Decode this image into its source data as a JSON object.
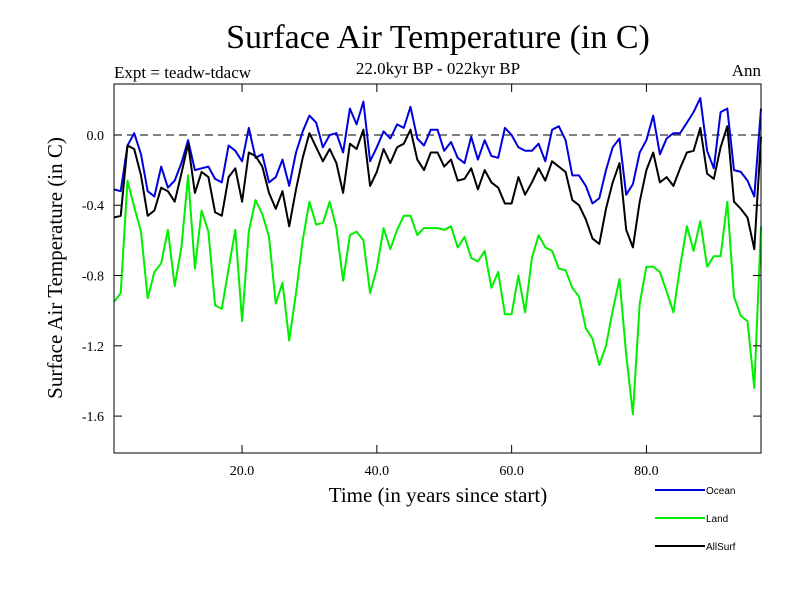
{
  "chart_data": {
    "type": "line",
    "title": "Surface Air Temperature (in C)",
    "subtitle": "22.0kyr BP - 022kyr BP",
    "experiment_label": "Expt = teadw-tdacw",
    "period_label": "Ann",
    "xlabel": "Time (in years since start)",
    "ylabel": "Surface Air Temperature (in C)",
    "xlim": [
      1,
      97
    ],
    "ylim": [
      -1.81,
      0.29
    ],
    "xticks": [
      20,
      40,
      60,
      80
    ],
    "xtick_labels": [
      "20.0",
      "40.0",
      "60.0",
      "80.0"
    ],
    "yticks": [
      0.0,
      -0.4,
      -0.8,
      -1.2,
      -1.6
    ],
    "ytick_labels": [
      "0.0",
      "-0.4",
      "-0.8",
      "-1.2",
      "-1.6"
    ],
    "reference_line": {
      "y": 0.0,
      "style": "dashed"
    },
    "legend_position": "bottom-right",
    "series": [
      {
        "name": "Ocean",
        "color": "#0000dd",
        "x": [
          1,
          2,
          3,
          4,
          5,
          6,
          7,
          8,
          9,
          10,
          11,
          12,
          13,
          14,
          15,
          16,
          17,
          18,
          19,
          20,
          21,
          22,
          23,
          24,
          25,
          26,
          27,
          28,
          29,
          30,
          31,
          32,
          33,
          34,
          35,
          36,
          37,
          38,
          39,
          40,
          41,
          42,
          43,
          44,
          45,
          46,
          47,
          48,
          49,
          50,
          51,
          52,
          53,
          54,
          55,
          56,
          57,
          58,
          59,
          60,
          61,
          62,
          63,
          64,
          65,
          66,
          67,
          68,
          69,
          70,
          71,
          72,
          73,
          74,
          75,
          76,
          77,
          78,
          79,
          80,
          81,
          82,
          83,
          84,
          85,
          86,
          87,
          88,
          89,
          90,
          91,
          92,
          93,
          94,
          95,
          96,
          97
        ],
        "values": [
          -0.31,
          -0.32,
          -0.06,
          0.01,
          -0.11,
          -0.32,
          -0.35,
          -0.18,
          -0.3,
          -0.26,
          -0.16,
          -0.03,
          -0.2,
          -0.19,
          -0.18,
          -0.25,
          -0.27,
          -0.06,
          -0.09,
          -0.15,
          0.04,
          -0.13,
          -0.11,
          -0.27,
          -0.24,
          -0.14,
          -0.29,
          -0.1,
          0.02,
          0.11,
          0.07,
          -0.07,
          0.0,
          0.01,
          -0.1,
          0.15,
          0.06,
          0.19,
          -0.15,
          -0.07,
          0.02,
          -0.02,
          0.06,
          0.04,
          0.16,
          -0.02,
          -0.06,
          0.03,
          0.03,
          -0.09,
          -0.04,
          -0.13,
          -0.16,
          -0.01,
          -0.14,
          -0.03,
          -0.12,
          -0.13,
          0.04,
          0.0,
          -0.07,
          -0.09,
          -0.09,
          -0.05,
          -0.15,
          0.03,
          0.05,
          -0.03,
          -0.23,
          -0.23,
          -0.29,
          -0.39,
          -0.36,
          -0.2,
          -0.07,
          -0.02,
          -0.34,
          -0.28,
          -0.1,
          -0.03,
          0.11,
          -0.11,
          -0.02,
          0.01,
          0.01,
          0.07,
          0.13,
          0.21,
          -0.09,
          -0.19,
          0.13,
          0.15,
          -0.2,
          -0.21,
          -0.26,
          -0.35,
          0.15
        ]
      },
      {
        "name": "Land",
        "color": "#00ee00",
        "x": [
          1,
          2,
          3,
          4,
          5,
          6,
          7,
          8,
          9,
          10,
          11,
          12,
          13,
          14,
          15,
          16,
          17,
          18,
          19,
          20,
          21,
          22,
          23,
          24,
          25,
          26,
          27,
          28,
          29,
          30,
          31,
          32,
          33,
          34,
          35,
          36,
          37,
          38,
          39,
          40,
          41,
          42,
          43,
          44,
          45,
          46,
          47,
          48,
          49,
          50,
          51,
          52,
          53,
          54,
          55,
          56,
          57,
          58,
          59,
          60,
          61,
          62,
          63,
          64,
          65,
          66,
          67,
          68,
          69,
          70,
          71,
          72,
          73,
          74,
          75,
          76,
          77,
          78,
          79,
          80,
          81,
          82,
          83,
          84,
          85,
          86,
          87,
          88,
          89,
          90,
          91,
          92,
          93,
          94,
          95,
          96,
          97
        ],
        "values": [
          -0.95,
          -0.9,
          -0.26,
          -0.41,
          -0.55,
          -0.93,
          -0.78,
          -0.73,
          -0.54,
          -0.86,
          -0.64,
          -0.23,
          -0.76,
          -0.43,
          -0.55,
          -0.97,
          -0.99,
          -0.76,
          -0.54,
          -1.06,
          -0.55,
          -0.37,
          -0.45,
          -0.58,
          -0.96,
          -0.84,
          -1.17,
          -0.9,
          -0.6,
          -0.38,
          -0.51,
          -0.5,
          -0.38,
          -0.53,
          -0.83,
          -0.57,
          -0.55,
          -0.6,
          -0.9,
          -0.76,
          -0.53,
          -0.65,
          -0.54,
          -0.46,
          -0.46,
          -0.57,
          -0.53,
          -0.53,
          -0.53,
          -0.54,
          -0.52,
          -0.64,
          -0.58,
          -0.7,
          -0.72,
          -0.66,
          -0.87,
          -0.78,
          -1.02,
          -1.02,
          -0.8,
          -1.01,
          -0.7,
          -0.57,
          -0.64,
          -0.66,
          -0.76,
          -0.77,
          -0.87,
          -0.92,
          -1.1,
          -1.16,
          -1.31,
          -1.2,
          -1.0,
          -0.82,
          -1.25,
          -1.59,
          -0.96,
          -0.75,
          -0.75,
          -0.78,
          -0.89,
          -1.01,
          -0.75,
          -0.52,
          -0.66,
          -0.49,
          -0.75,
          -0.69,
          -0.69,
          -0.38,
          -0.92,
          -1.03,
          -1.06,
          -1.44,
          -0.52
        ]
      },
      {
        "name": "AllSurf",
        "color": "#000000",
        "x": [
          1,
          2,
          3,
          4,
          5,
          6,
          7,
          8,
          9,
          10,
          11,
          12,
          13,
          14,
          15,
          16,
          17,
          18,
          19,
          20,
          21,
          22,
          23,
          24,
          25,
          26,
          27,
          28,
          29,
          30,
          31,
          32,
          33,
          34,
          35,
          36,
          37,
          38,
          39,
          40,
          41,
          42,
          43,
          44,
          45,
          46,
          47,
          48,
          49,
          50,
          51,
          52,
          53,
          54,
          55,
          56,
          57,
          58,
          59,
          60,
          61,
          62,
          63,
          64,
          65,
          66,
          67,
          68,
          69,
          70,
          71,
          72,
          73,
          74,
          75,
          76,
          77,
          78,
          79,
          80,
          81,
          82,
          83,
          84,
          85,
          86,
          87,
          88,
          89,
          90,
          91,
          92,
          93,
          94,
          95,
          96,
          97
        ],
        "values": [
          -0.47,
          -0.46,
          -0.06,
          -0.08,
          -0.23,
          -0.46,
          -0.43,
          -0.3,
          -0.32,
          -0.38,
          -0.22,
          -0.05,
          -0.33,
          -0.21,
          -0.24,
          -0.44,
          -0.46,
          -0.24,
          -0.19,
          -0.38,
          -0.1,
          -0.12,
          -0.18,
          -0.33,
          -0.42,
          -0.32,
          -0.52,
          -0.31,
          -0.13,
          0.01,
          -0.07,
          -0.15,
          -0.08,
          -0.16,
          -0.33,
          -0.05,
          -0.08,
          0.03,
          -0.29,
          -0.21,
          -0.08,
          -0.16,
          -0.07,
          -0.05,
          0.03,
          -0.14,
          -0.2,
          -0.1,
          -0.1,
          -0.18,
          -0.14,
          -0.26,
          -0.25,
          -0.19,
          -0.31,
          -0.2,
          -0.27,
          -0.3,
          -0.39,
          -0.39,
          -0.24,
          -0.34,
          -0.27,
          -0.19,
          -0.26,
          -0.15,
          -0.18,
          -0.21,
          -0.37,
          -0.4,
          -0.48,
          -0.59,
          -0.62,
          -0.42,
          -0.27,
          -0.16,
          -0.54,
          -0.64,
          -0.38,
          -0.2,
          -0.1,
          -0.27,
          -0.24,
          -0.29,
          -0.19,
          -0.1,
          -0.09,
          0.04,
          -0.22,
          -0.25,
          -0.07,
          0.05,
          -0.38,
          -0.42,
          -0.47,
          -0.65,
          -0.01
        ]
      }
    ]
  }
}
